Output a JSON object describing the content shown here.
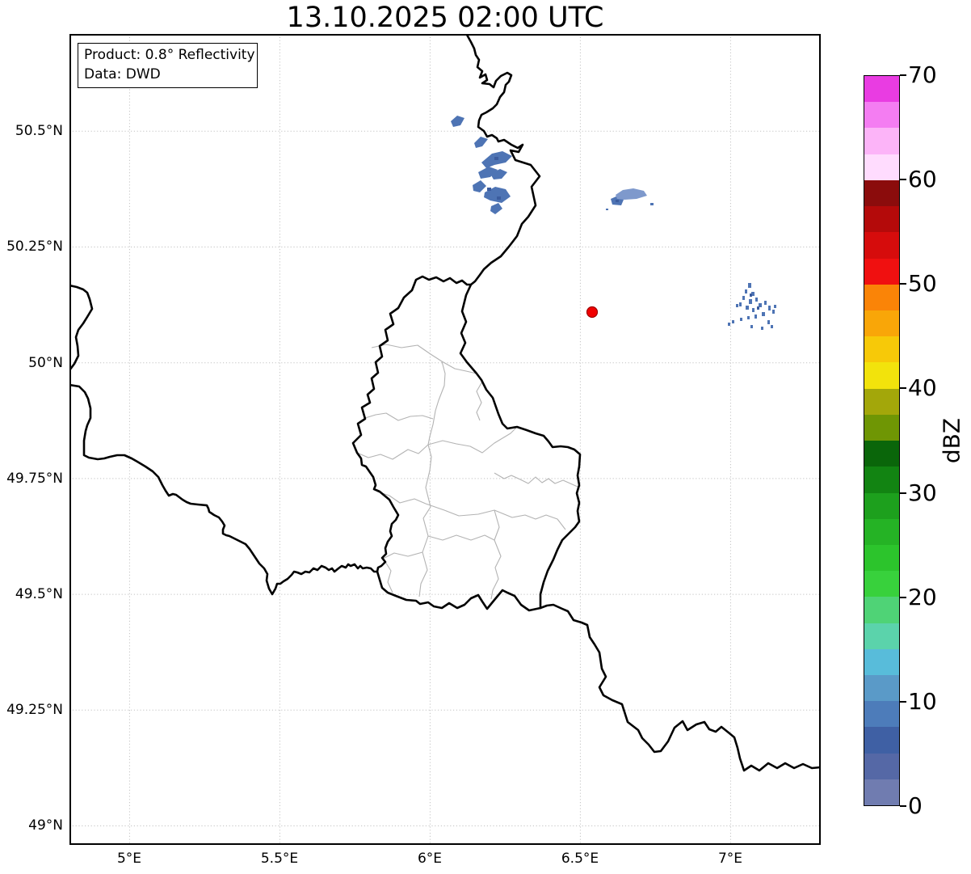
{
  "title": "13.10.2025 02:00 UTC",
  "info_box": {
    "product_line": "Product: 0.8° Reflectivity",
    "data_line": "Data: DWD"
  },
  "axes": {
    "x_ticks": [
      "5°E",
      "5.5°E",
      "6°E",
      "6.5°E",
      "7°E"
    ],
    "y_ticks": [
      "50.5°N",
      "50.25°N",
      "50°N",
      "49.75°N",
      "49.5°N",
      "49.25°N",
      "49°N"
    ]
  },
  "colorbar": {
    "unit_label": "dBZ",
    "min": 0,
    "max": 70,
    "tick_labels": [
      "0",
      "10",
      "20",
      "30",
      "40",
      "50",
      "60",
      "70"
    ],
    "colors_bottom_to_top": [
      "#707cb0",
      "#5568a6",
      "#3f60a4",
      "#4d7cba",
      "#5a9ac8",
      "#58bcda",
      "#5bd3ab",
      "#4fd376",
      "#38d13c",
      "#2cc42c",
      "#25b325",
      "#1da01d",
      "#128412",
      "#0a660a",
      "#6f9604",
      "#a3a70a",
      "#f2e30c",
      "#f7c908",
      "#f9a608",
      "#fa8407",
      "#f01010",
      "#d60c0c",
      "#b40a0a",
      "#8b0c0c",
      "#ffdcfe",
      "#fcb4f8",
      "#f47df2",
      "#e93ce2"
    ]
  },
  "map": {
    "marker_color": "#f10000",
    "marker_edge_color": "#a00000",
    "echo_palette": {
      "main": "#4e74b4",
      "dark": "#3b5c9e",
      "light": "#7e99cc"
    }
  }
}
